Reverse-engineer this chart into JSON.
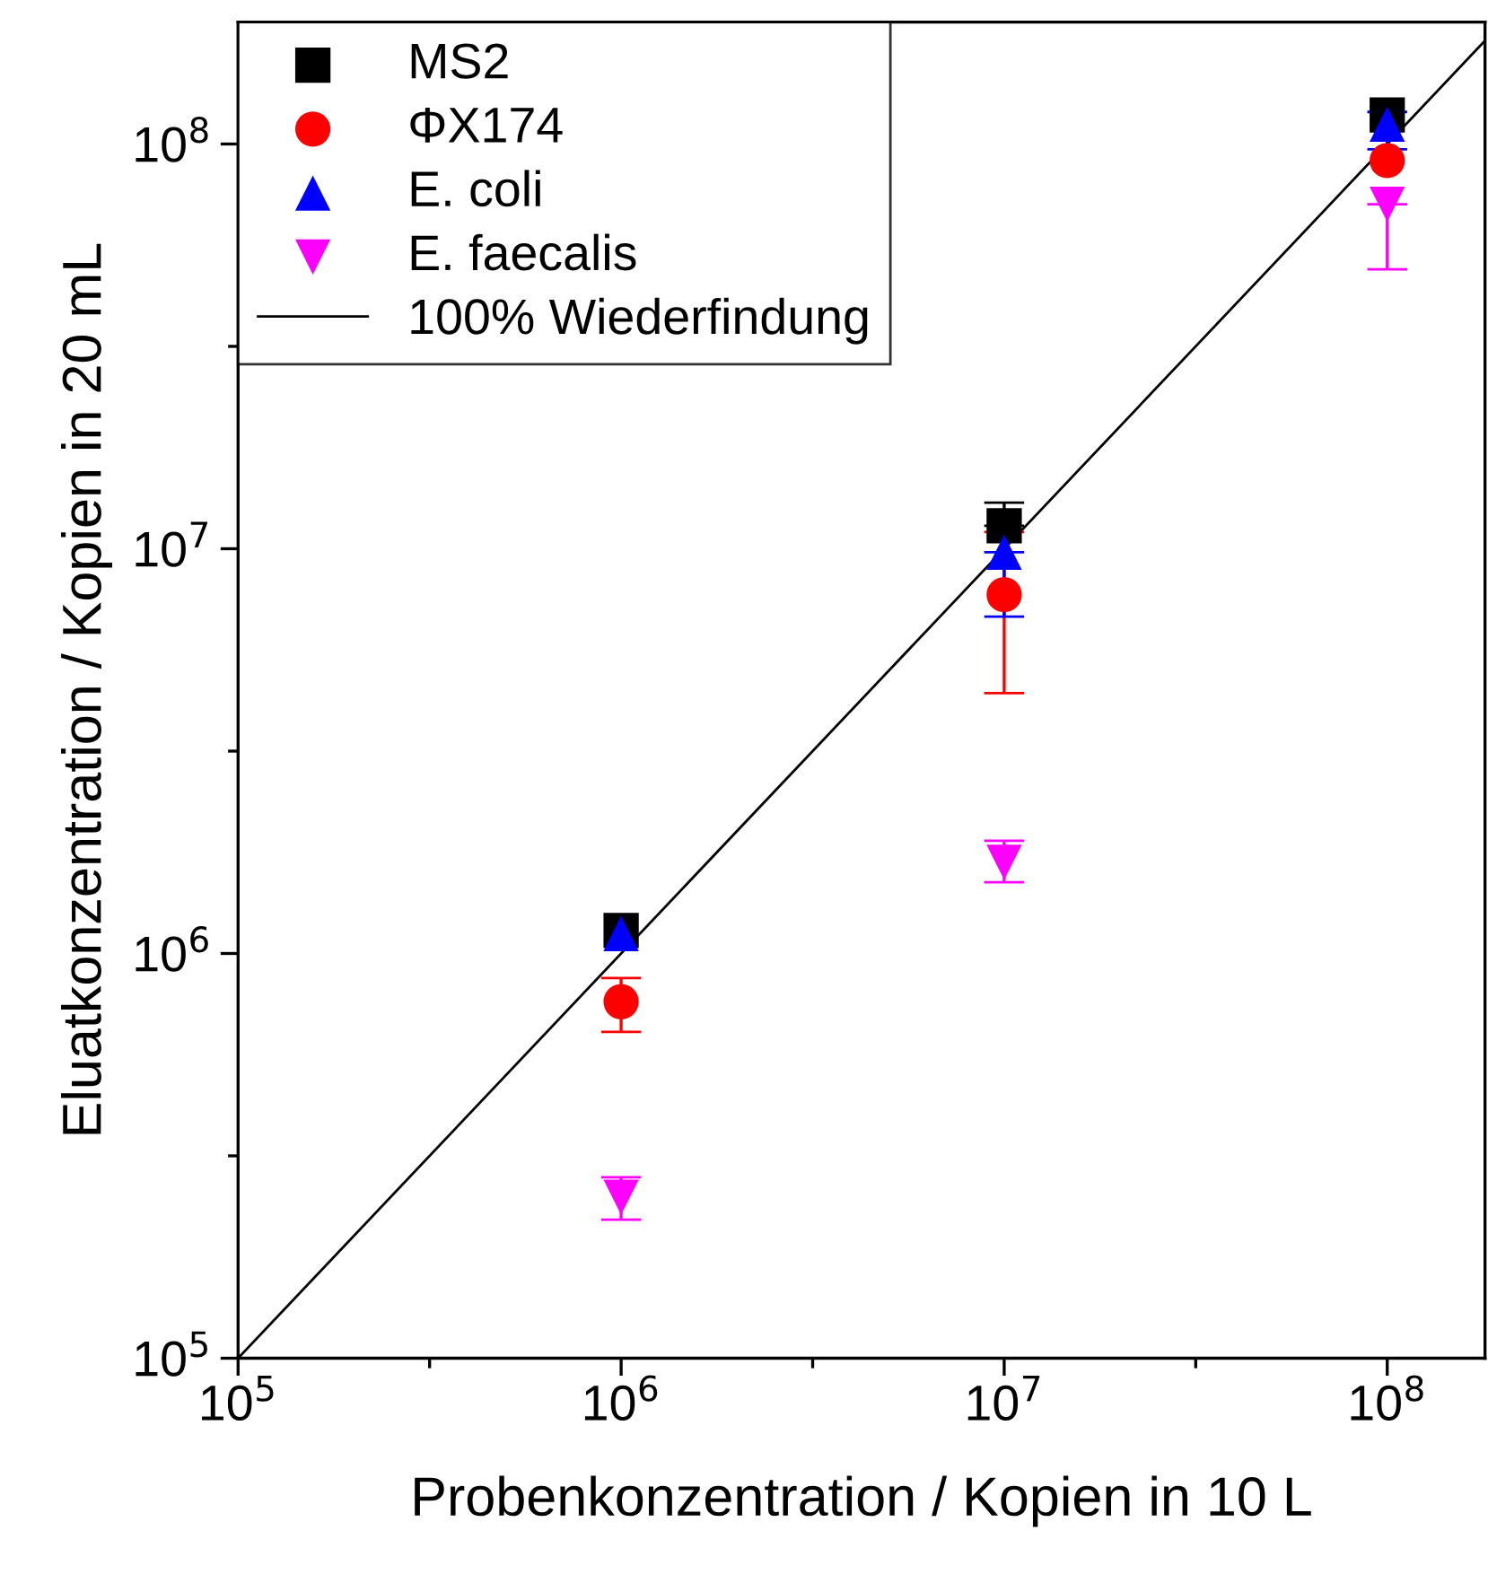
{
  "chart_data": {
    "type": "scatter",
    "xlabel": "Probenkonzentration / Kopien in 10 L",
    "ylabel": "Eluatkonzentration / Kopien in 20 mL",
    "log": "xy",
    "legend": "top left",
    "grid": false,
    "xlim": [
      100000,
      180000000
    ],
    "ylim": [
      100000,
      200000000
    ],
    "xticks": [
      {
        "value": 100000,
        "label": "10$^{5}$"
      },
      {
        "value": 316228,
        "label": null
      },
      {
        "value": 1000000,
        "label": "10$^{6}$"
      },
      {
        "value": 3162278,
        "label": null
      },
      {
        "value": 10000000,
        "label": "10$^{7}$"
      },
      {
        "value": 31622777,
        "label": null
      },
      {
        "value": 100000000,
        "label": "10$^{8}$"
      }
    ],
    "yticks": [
      {
        "value": 100000,
        "label": "10$^{5}$"
      },
      {
        "value": 316228,
        "label": null
      },
      {
        "value": 1000000,
        "label": "10$^{6}$"
      },
      {
        "value": 3162278,
        "label": null
      },
      {
        "value": 10000000,
        "label": "10$^{7}$"
      },
      {
        "value": 31622777,
        "label": null
      },
      {
        "value": 100000000,
        "label": "10$^{8}$"
      }
    ],
    "series": [
      {
        "name": "MS2",
        "color": "#000000",
        "marker": "square",
        "x": [
          1000000,
          10000000,
          100000000
        ],
        "values": [
          1140000,
          11400000,
          118000000
        ],
        "errors": [
          null,
          [
            11400000,
            13000000
          ],
          null
        ]
      },
      {
        "name": "ΦX174",
        "color": "#ff0000",
        "marker": "circle",
        "x": [
          1000000,
          10000000,
          100000000
        ],
        "values": [
          760000,
          7700000,
          91000000
        ],
        "errors": [
          [
            640000,
            870000
          ],
          [
            4400000,
            11000000
          ],
          null
        ]
      },
      {
        "name": "E. coli",
        "color": "#0000ff",
        "marker": "triangle",
        "x": [
          1000000,
          10000000,
          100000000
        ],
        "values": [
          1120000,
          9800000,
          112000000
        ],
        "errors": [
          null,
          [
            6800000,
            9800000
          ],
          [
            97000000,
            120000000
          ]
        ]
      },
      {
        "name": "E. faecalis",
        "color": "#ff00ff",
        "marker": "triangle_down",
        "x": [
          1000000,
          10000000,
          100000000
        ],
        "values": [
          250000,
          1680000,
          71000000
        ],
        "errors": [
          [
            220000,
            280000
          ],
          [
            1500000,
            1900000
          ],
          [
            49000000,
            71000000
          ]
        ]
      },
      {
        "name": "100% Wiederfindung",
        "type": "line",
        "color": "#000000",
        "line_style": "solid",
        "x": [
          100000,
          180000000
        ],
        "values": [
          100000,
          180000000
        ]
      }
    ]
  }
}
